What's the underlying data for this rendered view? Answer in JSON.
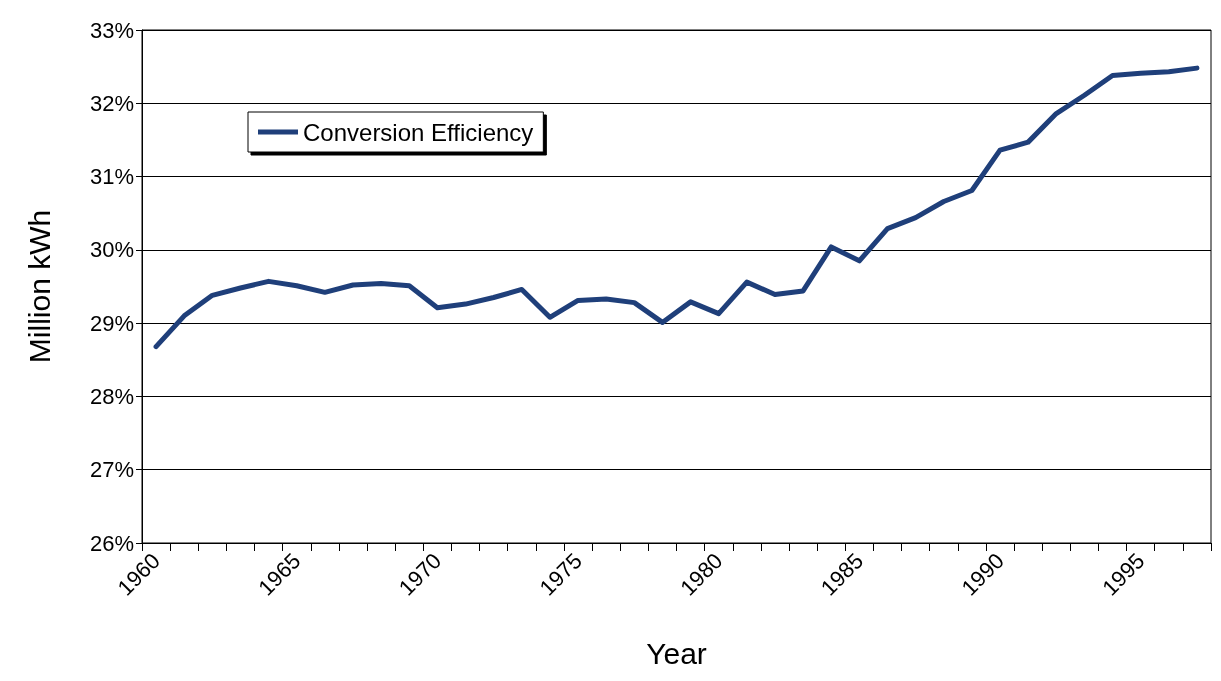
{
  "chart_data": {
    "type": "line",
    "xlabel": "Year",
    "ylabel": "Million kWh",
    "categories": [
      "1960",
      null,
      null,
      null,
      null,
      "1965",
      null,
      null,
      null,
      null,
      "1970",
      null,
      null,
      null,
      null,
      "1975",
      null,
      null,
      null,
      null,
      "1980",
      null,
      null,
      null,
      null,
      "1985",
      null,
      null,
      null,
      null,
      "1990",
      null,
      null,
      null,
      null,
      "1995",
      null,
      null
    ],
    "series": [
      {
        "name": "Conversion Efficiency",
        "color": "#1f3f7a",
        "values": [
          28.68,
          29.1,
          29.38,
          29.48,
          29.57,
          29.51,
          29.42,
          29.52,
          29.54,
          29.51,
          29.21,
          29.26,
          29.35,
          29.46,
          29.08,
          29.31,
          29.33,
          29.28,
          29.01,
          29.29,
          29.13,
          29.56,
          29.39,
          29.44,
          30.04,
          29.85,
          30.29,
          30.44,
          30.66,
          30.81,
          31.36,
          31.47,
          31.86,
          32.11,
          32.38,
          32.41,
          32.43,
          32.48
        ]
      }
    ],
    "ylim": [
      26,
      33
    ],
    "yticks": [
      {
        "value": 26,
        "label": "26%"
      },
      {
        "value": 27,
        "label": "27%"
      },
      {
        "value": 28,
        "label": "28%"
      },
      {
        "value": 29,
        "label": "29%"
      },
      {
        "value": 30,
        "label": "30%"
      },
      {
        "value": 31,
        "label": "31%"
      },
      {
        "value": 32,
        "label": "32%"
      },
      {
        "value": 33,
        "label": "33%"
      }
    ],
    "grid": "y",
    "legend": "top left",
    "marker": "none",
    "line_style": "solid"
  }
}
